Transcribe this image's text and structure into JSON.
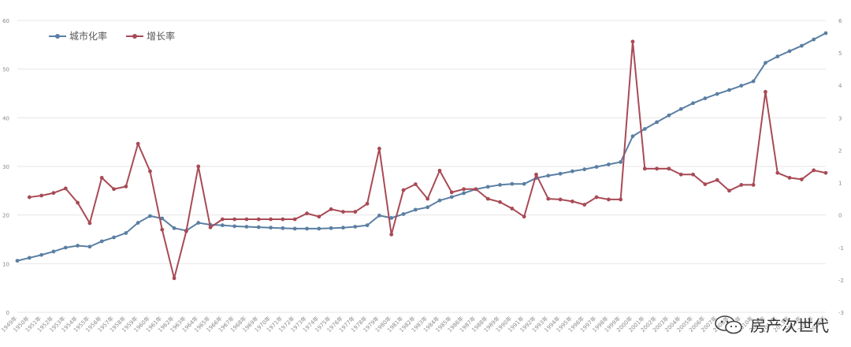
{
  "chart_data": {
    "type": "line",
    "legend": {
      "placement": "top-left"
    },
    "grid": true,
    "y_left": {
      "ylim": [
        0,
        60
      ],
      "ticks": [
        "0",
        "10",
        "20",
        "30",
        "40",
        "50",
        "60"
      ]
    },
    "y_right": {
      "ylim": [
        -3,
        6
      ],
      "ticks": [
        "-3",
        "-2",
        "-1",
        "0",
        "1",
        "2",
        "3",
        "4",
        "5",
        "6"
      ]
    },
    "categories": [
      "1949年",
      "1950年",
      "1951年",
      "1952年",
      "1953年",
      "1954年",
      "1955年",
      "1956年",
      "1957年",
      "1958年",
      "1959年",
      "1960年",
      "1961年",
      "1962年",
      "1963年",
      "1964年",
      "1965年",
      "1966年",
      "1967年",
      "1968年",
      "1969年",
      "1970年",
      "1971年",
      "1972年",
      "1973年",
      "1974年",
      "1975年",
      "1976年",
      "1977年",
      "1978年",
      "1979年",
      "1980年",
      "1981年",
      "1982年",
      "1983年",
      "1984年",
      "1985年",
      "1986年",
      "1987年",
      "1988年",
      "1989年",
      "1990年",
      "1991年",
      "1992年",
      "1993年",
      "1994年",
      "1995年",
      "1996年",
      "1997年",
      "1998年",
      "1999年",
      "2000年",
      "2001年",
      "2002年",
      "2003年",
      "2004年",
      "2005年",
      "2006年",
      "2007年",
      "2008年",
      "2009年",
      "2010年",
      "2011年",
      "2012年",
      "2013年",
      "2014年",
      "2015年",
      "2016年"
    ],
    "series": [
      {
        "name": "城市化率",
        "axis": "left",
        "color": "#5b7fa3",
        "values": [
          10.6,
          11.2,
          11.8,
          12.5,
          13.3,
          13.7,
          13.5,
          14.6,
          15.4,
          16.3,
          18.4,
          19.8,
          19.3,
          17.3,
          16.8,
          18.4,
          18.0,
          17.9,
          17.7,
          17.6,
          17.5,
          17.4,
          17.3,
          17.2,
          17.2,
          17.2,
          17.3,
          17.4,
          17.6,
          17.9,
          19.9,
          19.4,
          20.2,
          21.1,
          21.6,
          23.0,
          23.7,
          24.5,
          25.3,
          25.8,
          26.2,
          26.4,
          26.4,
          27.6,
          28.1,
          28.5,
          29.0,
          29.4,
          29.9,
          30.4,
          30.9,
          36.2,
          37.7,
          39.1,
          40.5,
          41.8,
          43.0,
          44.0,
          44.9,
          45.7,
          46.6,
          47.5,
          51.3,
          52.6,
          53.7,
          54.8,
          56.1,
          57.4
        ]
      },
      {
        "name": "增长率",
        "axis": "right",
        "color": "#a84a55",
        "values": [
          null,
          0.55,
          0.6,
          0.68,
          0.82,
          0.38,
          -0.25,
          1.15,
          0.8,
          0.88,
          2.2,
          1.35,
          -0.45,
          -1.95,
          -0.5,
          1.5,
          -0.38,
          -0.13,
          -0.13,
          -0.13,
          -0.13,
          -0.13,
          -0.13,
          -0.13,
          0.05,
          -0.05,
          0.18,
          0.1,
          0.1,
          0.35,
          2.05,
          -0.6,
          0.77,
          0.95,
          0.5,
          1.37,
          0.7,
          0.8,
          0.8,
          0.5,
          0.4,
          0.2,
          -0.05,
          1.25,
          0.5,
          0.48,
          0.42,
          0.32,
          0.55,
          0.48,
          0.48,
          5.35,
          1.43,
          1.43,
          1.43,
          1.25,
          1.25,
          0.95,
          1.08,
          0.75,
          0.93,
          0.93,
          3.8,
          1.3,
          1.15,
          1.1,
          1.38,
          1.3
        ]
      }
    ]
  },
  "watermark": {
    "text": "房产次世代",
    "icon": "wechat-icon"
  }
}
